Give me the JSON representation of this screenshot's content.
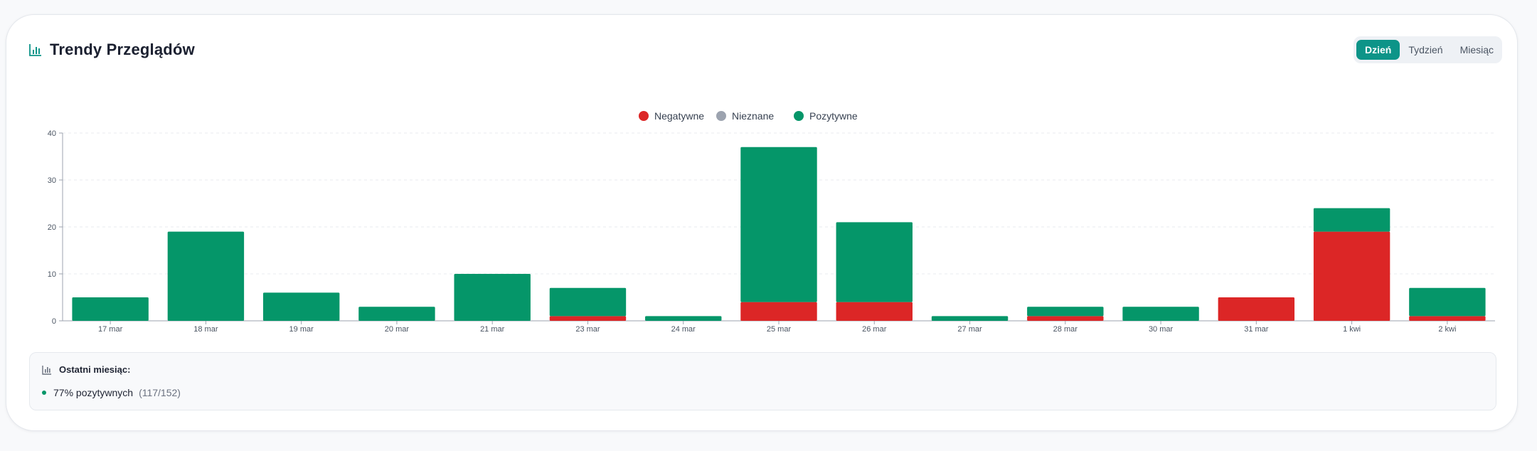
{
  "header": {
    "title": "Trendy Przeglądów",
    "icon": "bar-chart-icon"
  },
  "period": {
    "options": [
      "Dzień",
      "Tydzień",
      "Miesiąc"
    ],
    "selected": "Dzień"
  },
  "colors": {
    "accent": "#0d9488",
    "negative": "#dc2626",
    "unknown": "#9ca3af",
    "positive": "#059669"
  },
  "chart_data": {
    "type": "bar",
    "stacked": true,
    "categories": [
      "17 mar",
      "18 mar",
      "19 mar",
      "20 mar",
      "21 mar",
      "23 mar",
      "24 mar",
      "25 mar",
      "26 mar",
      "27 mar",
      "28 mar",
      "30 mar",
      "31 mar",
      "1 kwi",
      "2 kwi"
    ],
    "series": [
      {
        "name": "Negatywne",
        "color": "#dc2626",
        "values": [
          0,
          0,
          0,
          0,
          0,
          1,
          0,
          4,
          4,
          0,
          1,
          0,
          5,
          19,
          1
        ]
      },
      {
        "name": "Nieznane",
        "color": "#9ca3af",
        "values": [
          0,
          0,
          0,
          0,
          0,
          0,
          0,
          0,
          0,
          0,
          0,
          0,
          0,
          0,
          0
        ]
      },
      {
        "name": "Pozytywne",
        "color": "#059669",
        "values": [
          5,
          19,
          6,
          3,
          10,
          6,
          1,
          33,
          17,
          1,
          2,
          3,
          0,
          5,
          6
        ]
      }
    ],
    "ylim": [
      0,
      40
    ],
    "yticks": [
      0,
      10,
      20,
      30,
      40
    ],
    "grid": true,
    "legend_position": "top-center"
  },
  "summary": {
    "title": "Ostatni miesiąc:",
    "value": "77% pozytywnych",
    "count": "(117/152)"
  }
}
